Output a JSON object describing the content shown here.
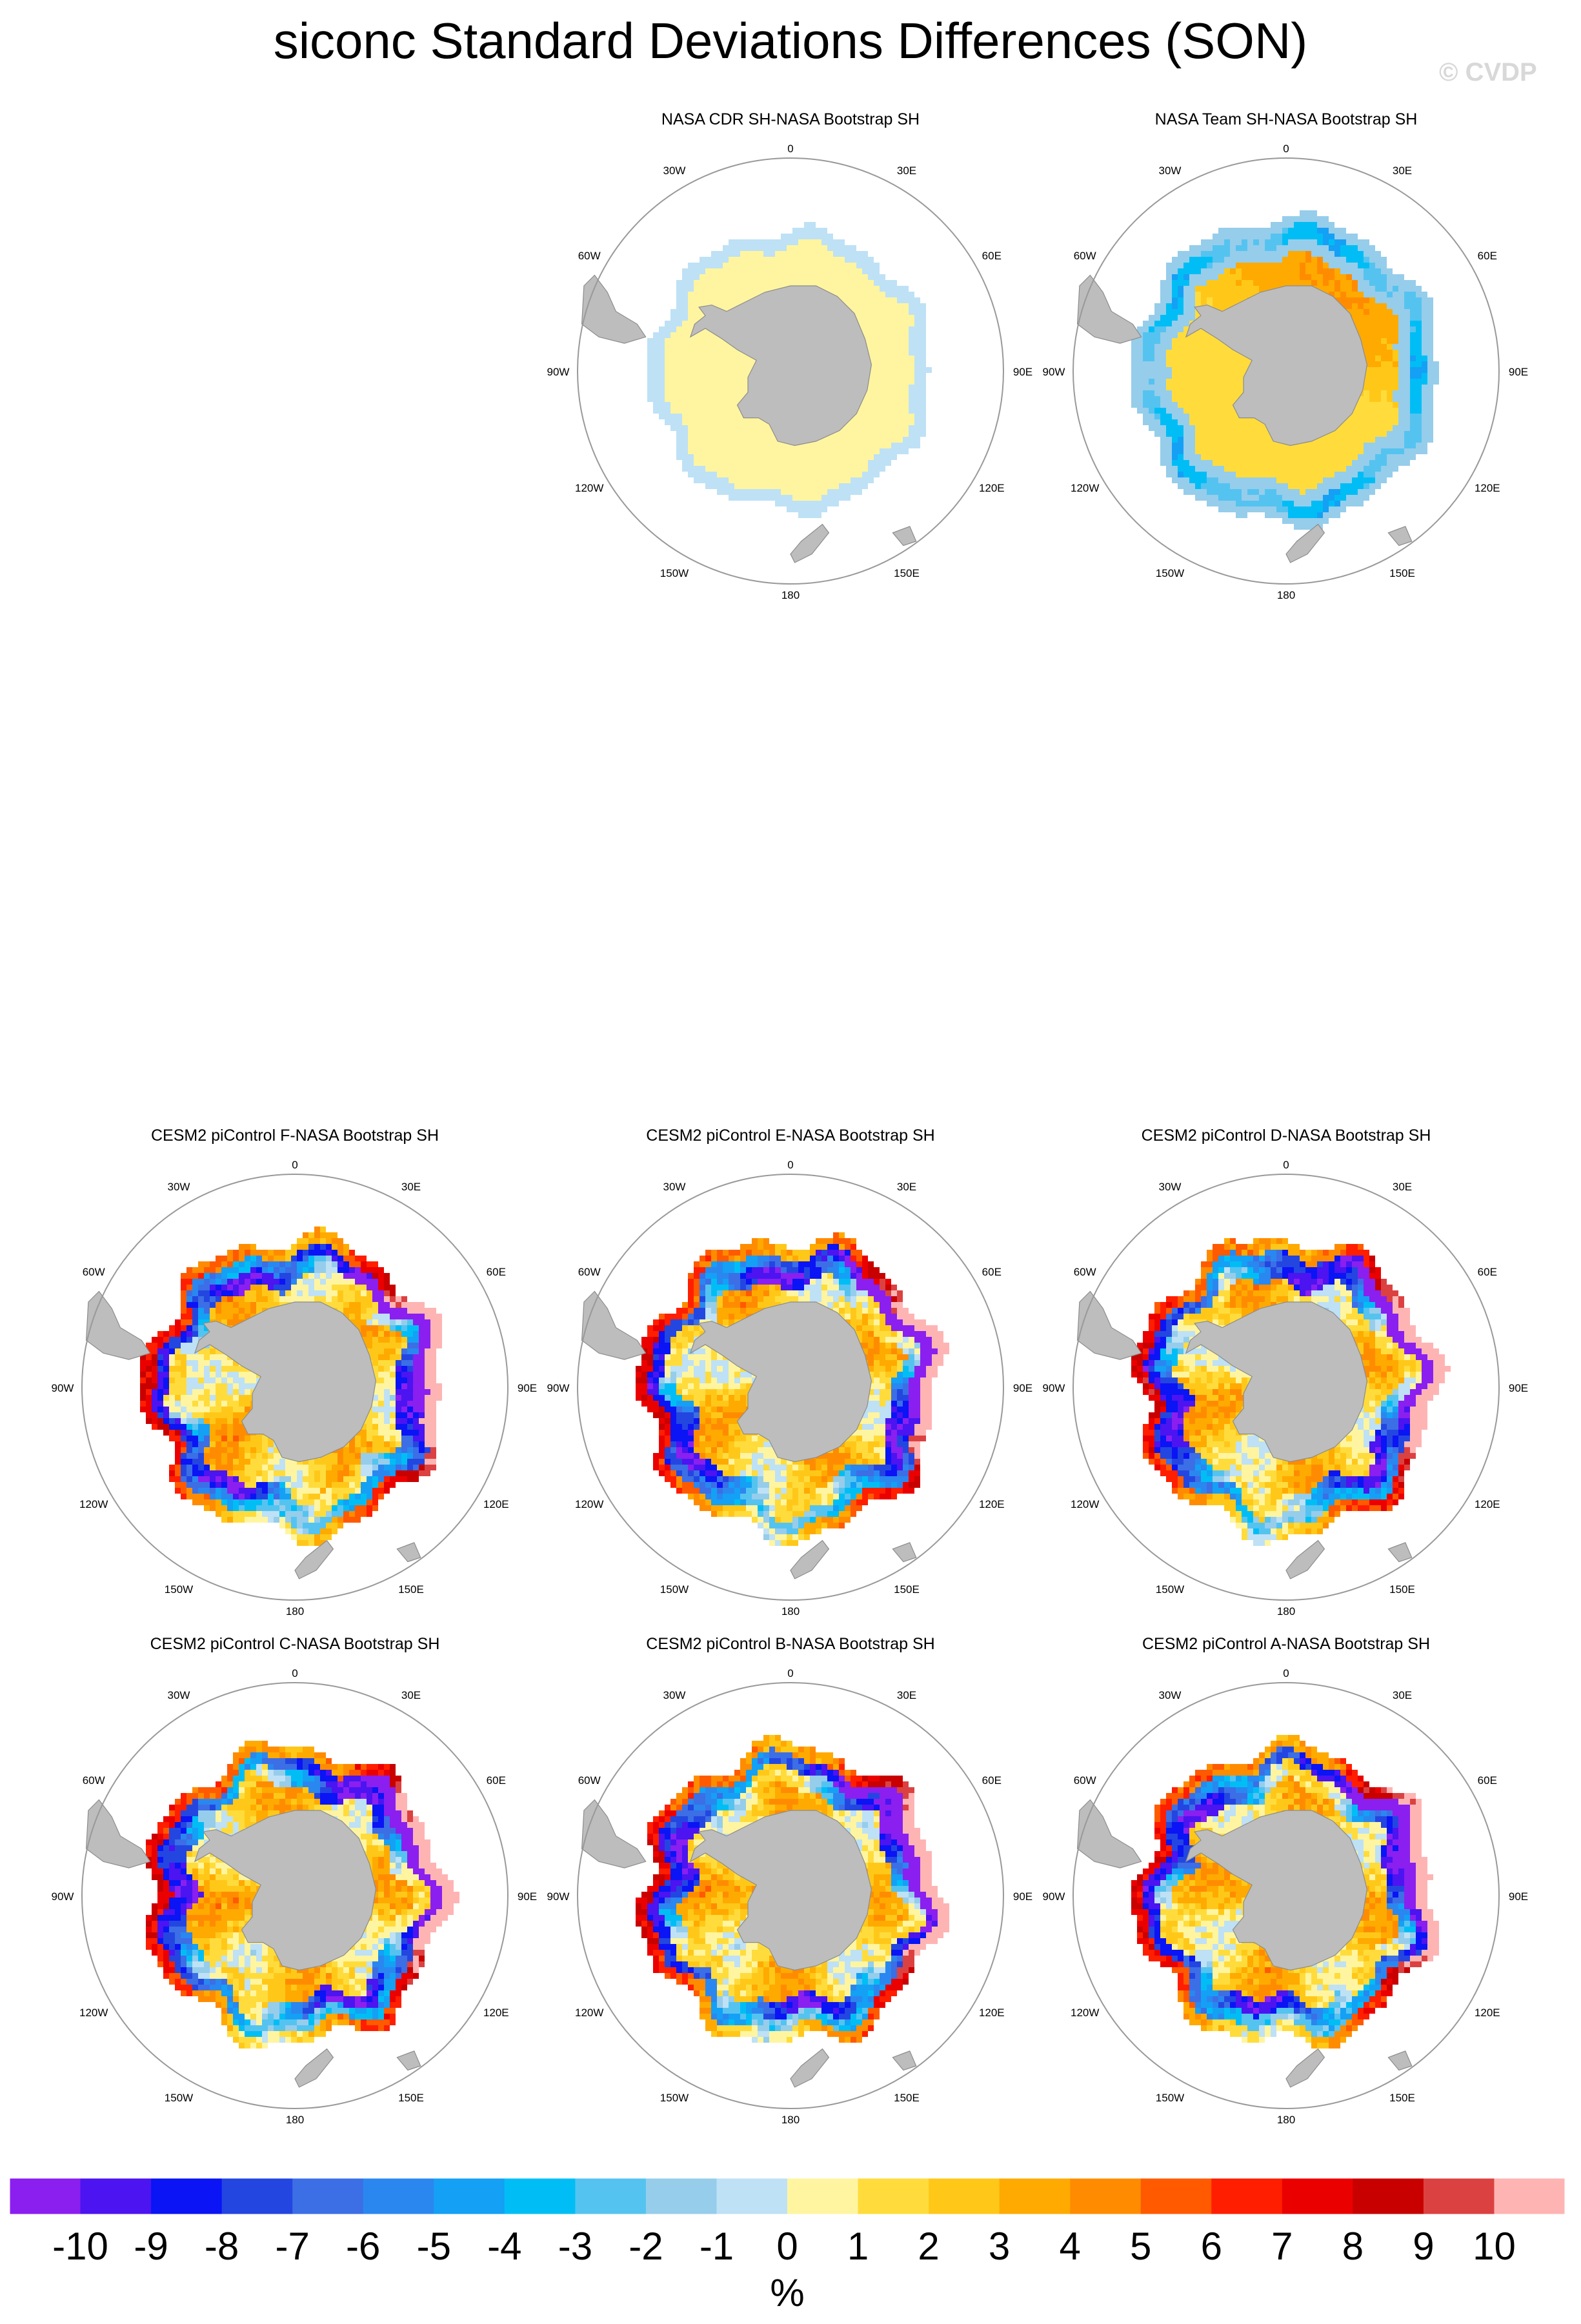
{
  "title": "siconc Standard Deviations Differences (SON)",
  "watermark": "© CVDP",
  "colors": {
    "land": "#bdbdbd",
    "circle": "#999999",
    "missing": "#ffffff",
    "levels": [
      "#8a1ff0",
      "#4b14f0",
      "#0a14f5",
      "#2346e1",
      "#3c6ee6",
      "#2a87f0",
      "#14a0f5",
      "#00bef5",
      "#55c3f0",
      "#96cdeb",
      "#bee1f5",
      "#fff5a0",
      "#ffdc3c",
      "#ffc819",
      "#ffaa00",
      "#ff8c00",
      "#ff5a00",
      "#ff1e00",
      "#eb0000",
      "#c80000",
      "#dc4141",
      "#ffb4b4"
    ]
  },
  "map_labels": {
    "lon": [
      "0",
      "30E",
      "60E",
      "90E",
      "120E",
      "150E",
      "180",
      "150W",
      "120W",
      "90W",
      "60W",
      "30W"
    ]
  },
  "chart_data": [
    {
      "type": "heatmap",
      "title": "NASA CDR SH-NASA Bootstrap SH",
      "pattern": "cdr",
      "projection": "south-polar-stereographic"
    },
    {
      "type": "heatmap",
      "title": "NASA Team SH-NASA Bootstrap SH",
      "pattern": "team",
      "projection": "south-polar-stereographic"
    },
    {
      "type": "heatmap",
      "title": "CESM2 piControl F-NASA Bootstrap SH",
      "pattern": "model",
      "seed": 6,
      "projection": "south-polar-stereographic"
    },
    {
      "type": "heatmap",
      "title": "CESM2 piControl E-NASA Bootstrap SH",
      "pattern": "model",
      "seed": 5,
      "projection": "south-polar-stereographic"
    },
    {
      "type": "heatmap",
      "title": "CESM2 piControl D-NASA Bootstrap SH",
      "pattern": "model",
      "seed": 4,
      "projection": "south-polar-stereographic"
    },
    {
      "type": "heatmap",
      "title": "CESM2 piControl C-NASA Bootstrap SH",
      "pattern": "model",
      "seed": 3,
      "projection": "south-polar-stereographic"
    },
    {
      "type": "heatmap",
      "title": "CESM2 piControl B-NASA Bootstrap SH",
      "pattern": "model",
      "seed": 2,
      "projection": "south-polar-stereographic"
    },
    {
      "type": "heatmap",
      "title": "CESM2 piControl A-NASA Bootstrap SH",
      "pattern": "model",
      "seed": 1,
      "projection": "south-polar-stereographic"
    }
  ],
  "colorbar": {
    "labels": [
      "-10",
      "-9",
      "-8",
      "-7",
      "-6",
      "-5",
      "-4",
      "-3",
      "-2",
      "-1",
      "0",
      "1",
      "2",
      "3",
      "4",
      "5",
      "6",
      "7",
      "8",
      "9",
      "10"
    ],
    "units": "%"
  }
}
